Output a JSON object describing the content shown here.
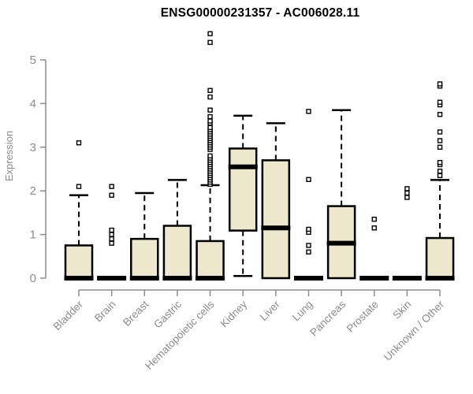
{
  "chart_data": {
    "type": "boxplot",
    "title": "ENSG00000231357 - AC006028.11",
    "ylabel": "Expression",
    "xlabel": "",
    "ylim": [
      0,
      5.75
    ],
    "yticks": [
      0,
      1,
      2,
      3,
      4,
      5
    ],
    "grid": false,
    "legend": "none",
    "categories": [
      "Bladder",
      "Brain",
      "Breast",
      "Gastric",
      "Hematopoietic cells",
      "Kidney",
      "Liver",
      "Lung",
      "Pancreas",
      "Prostate",
      "Skin",
      "Unknown / Other"
    ],
    "series": [
      {
        "category": "Bladder",
        "q1": 0,
        "median": 0,
        "q3": 0.75,
        "whisker_low": 0,
        "whisker_high": 1.9,
        "outliers": [
          2.1,
          3.1
        ]
      },
      {
        "category": "Brain",
        "q1": 0,
        "median": 0,
        "q3": 0,
        "whisker_low": 0,
        "whisker_high": 0,
        "outliers": [
          0.8,
          0.9,
          1.0,
          1.1,
          1.9,
          2.1
        ]
      },
      {
        "category": "Breast",
        "q1": 0,
        "median": 0,
        "q3": 0.9,
        "whisker_low": 0,
        "whisker_high": 1.95,
        "outliers": []
      },
      {
        "category": "Gastric",
        "q1": 0,
        "median": 0,
        "q3": 1.2,
        "whisker_low": 0,
        "whisker_high": 2.25,
        "outliers": []
      },
      {
        "category": "Hematopoietic cells",
        "q1": 0,
        "median": 0,
        "q3": 0.85,
        "whisker_low": 0,
        "whisker_high": 2.13,
        "outliers": [
          2.15,
          2.2,
          2.25,
          2.3,
          2.35,
          2.4,
          2.45,
          2.5,
          2.55,
          2.6,
          2.65,
          2.7,
          2.75,
          2.8,
          2.95,
          3.0,
          3.05,
          3.1,
          3.15,
          3.2,
          3.25,
          3.3,
          3.35,
          3.4,
          3.45,
          3.55,
          3.6,
          3.7,
          3.85,
          4.15,
          4.3,
          5.4,
          5.6
        ]
      },
      {
        "category": "Kidney",
        "q1": 1.09,
        "median": 2.55,
        "q3": 2.97,
        "whisker_low": 0.05,
        "whisker_high": 3.72,
        "outliers": []
      },
      {
        "category": "Liver",
        "q1": 0,
        "median": 1.15,
        "q3": 2.7,
        "whisker_low": 0,
        "whisker_high": 3.55,
        "outliers": []
      },
      {
        "category": "Lung",
        "q1": 0,
        "median": 0,
        "q3": 0,
        "whisker_low": 0,
        "whisker_high": 0,
        "outliers": [
          0.6,
          0.75,
          1.05,
          1.12,
          2.26,
          3.82
        ]
      },
      {
        "category": "Pancreas",
        "q1": 0,
        "median": 0.8,
        "q3": 1.65,
        "whisker_low": 0,
        "whisker_high": 3.85,
        "outliers": []
      },
      {
        "category": "Prostate",
        "q1": 0,
        "median": 0,
        "q3": 0,
        "whisker_low": 0,
        "whisker_high": 0,
        "outliers": [
          1.15,
          1.35
        ]
      },
      {
        "category": "Skin",
        "q1": 0,
        "median": 0,
        "q3": 0,
        "whisker_low": 0,
        "whisker_high": 0,
        "outliers": [
          1.85,
          1.95,
          2.05
        ]
      },
      {
        "category": "Unknown / Other",
        "q1": 0,
        "median": 0,
        "q3": 0.92,
        "whisker_low": 0,
        "whisker_high": 2.25,
        "outliers": [
          2.35,
          2.45,
          2.6,
          2.65,
          3.0,
          3.15,
          3.35,
          3.75,
          3.97,
          4.03,
          4.4,
          4.45
        ]
      }
    ],
    "styles": {
      "box_fill": "#EDE7CD",
      "box_border": "#000000",
      "median_color": "#000000",
      "whisker_color": "#000000",
      "outlier_color": "#000000",
      "axis_color": "#8C8C8C",
      "tick_label_color": "#8C8C8C",
      "title_color": "#000000",
      "background": "#FFFFFF"
    }
  }
}
